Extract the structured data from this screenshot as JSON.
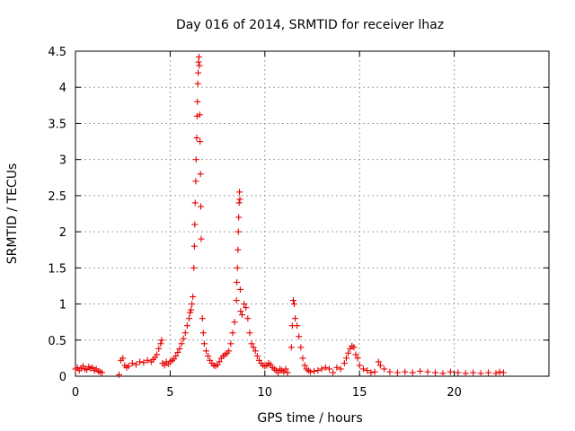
{
  "chart_data": {
    "type": "scatter",
    "title": "Day 016 of 2014, SRMTID for receiver lhaz",
    "xlabel": "GPS time / hours",
    "ylabel": "SRMTID / TECUs",
    "xlim": [
      0,
      25
    ],
    "ylim": [
      0,
      4.5
    ],
    "xticks": [
      "0",
      "5",
      "10",
      "15",
      "20"
    ],
    "yticks": [
      "0",
      "0.5",
      "1",
      "1.5",
      "2",
      "2.5",
      "3",
      "3.5",
      "4",
      "4.5"
    ],
    "xtick_values": [
      0,
      5,
      10,
      15,
      20
    ],
    "ytick_values": [
      0,
      0.5,
      1,
      1.5,
      2,
      2.5,
      3,
      3.5,
      4,
      4.5
    ],
    "grid": true,
    "marker": "plus",
    "series": [
      {
        "name": "SRMTID",
        "color": "#e60000",
        "points": [
          [
            0.0,
            0.1
          ],
          [
            0.1,
            0.12
          ],
          [
            0.2,
            0.08
          ],
          [
            0.3,
            0.11
          ],
          [
            0.4,
            0.14
          ],
          [
            0.5,
            0.1
          ],
          [
            0.6,
            0.09
          ],
          [
            0.7,
            0.13
          ],
          [
            0.8,
            0.11
          ],
          [
            0.9,
            0.12
          ],
          [
            1.0,
            0.08
          ],
          [
            1.1,
            0.1
          ],
          [
            1.2,
            0.07
          ],
          [
            1.3,
            0.06
          ],
          [
            1.4,
            0.05
          ],
          [
            2.3,
            0.02
          ],
          [
            2.4,
            0.22
          ],
          [
            2.5,
            0.25
          ],
          [
            2.6,
            0.15
          ],
          [
            2.7,
            0.12
          ],
          [
            2.8,
            0.14
          ],
          [
            3.0,
            0.18
          ],
          [
            3.2,
            0.16
          ],
          [
            3.4,
            0.2
          ],
          [
            3.6,
            0.19
          ],
          [
            3.8,
            0.22
          ],
          [
            4.0,
            0.2
          ],
          [
            4.1,
            0.23
          ],
          [
            4.2,
            0.26
          ],
          [
            4.3,
            0.3
          ],
          [
            4.4,
            0.38
          ],
          [
            4.5,
            0.45
          ],
          [
            4.55,
            0.5
          ],
          [
            4.6,
            0.18
          ],
          [
            4.7,
            0.15
          ],
          [
            4.8,
            0.2
          ],
          [
            4.9,
            0.17
          ],
          [
            5.0,
            0.2
          ],
          [
            5.1,
            0.22
          ],
          [
            5.2,
            0.24
          ],
          [
            5.3,
            0.28
          ],
          [
            5.4,
            0.33
          ],
          [
            5.5,
            0.38
          ],
          [
            5.6,
            0.45
          ],
          [
            5.7,
            0.52
          ],
          [
            5.8,
            0.6
          ],
          [
            5.9,
            0.7
          ],
          [
            6.0,
            0.8
          ],
          [
            6.05,
            0.88
          ],
          [
            6.1,
            0.92
          ],
          [
            6.15,
            1.0
          ],
          [
            6.2,
            1.1
          ],
          [
            6.25,
            1.5
          ],
          [
            6.28,
            1.8
          ],
          [
            6.3,
            2.1
          ],
          [
            6.32,
            2.4
          ],
          [
            6.35,
            2.7
          ],
          [
            6.37,
            3.0
          ],
          [
            6.4,
            3.3
          ],
          [
            6.42,
            3.6
          ],
          [
            6.44,
            3.8
          ],
          [
            6.46,
            4.05
          ],
          [
            6.48,
            4.2
          ],
          [
            6.5,
            4.35
          ],
          [
            6.52,
            4.42
          ],
          [
            6.54,
            4.3
          ],
          [
            6.56,
            3.62
          ],
          [
            6.58,
            3.25
          ],
          [
            6.6,
            2.8
          ],
          [
            6.62,
            2.35
          ],
          [
            6.64,
            1.9
          ],
          [
            6.7,
            0.8
          ],
          [
            6.75,
            0.6
          ],
          [
            6.8,
            0.45
          ],
          [
            6.9,
            0.35
          ],
          [
            7.0,
            0.28
          ],
          [
            7.1,
            0.22
          ],
          [
            7.2,
            0.18
          ],
          [
            7.3,
            0.15
          ],
          [
            7.4,
            0.14
          ],
          [
            7.5,
            0.16
          ],
          [
            7.6,
            0.2
          ],
          [
            7.7,
            0.25
          ],
          [
            7.8,
            0.28
          ],
          [
            7.9,
            0.3
          ],
          [
            8.0,
            0.32
          ],
          [
            8.1,
            0.35
          ],
          [
            8.2,
            0.45
          ],
          [
            8.3,
            0.6
          ],
          [
            8.4,
            0.75
          ],
          [
            8.5,
            1.05
          ],
          [
            8.52,
            1.3
          ],
          [
            8.55,
            1.5
          ],
          [
            8.58,
            1.75
          ],
          [
            8.6,
            2.0
          ],
          [
            8.62,
            2.2
          ],
          [
            8.64,
            2.4
          ],
          [
            8.66,
            2.55
          ],
          [
            8.68,
            2.45
          ],
          [
            8.7,
            1.2
          ],
          [
            8.72,
            0.9
          ],
          [
            8.8,
            0.85
          ],
          [
            8.9,
            1.0
          ],
          [
            9.0,
            0.95
          ],
          [
            9.1,
            0.8
          ],
          [
            9.2,
            0.6
          ],
          [
            9.3,
            0.45
          ],
          [
            9.4,
            0.4
          ],
          [
            9.5,
            0.35
          ],
          [
            9.6,
            0.28
          ],
          [
            9.7,
            0.22
          ],
          [
            9.8,
            0.18
          ],
          [
            9.9,
            0.15
          ],
          [
            10.0,
            0.14
          ],
          [
            10.1,
            0.15
          ],
          [
            10.2,
            0.18
          ],
          [
            10.3,
            0.16
          ],
          [
            10.4,
            0.12
          ],
          [
            10.5,
            0.1
          ],
          [
            10.6,
            0.08
          ],
          [
            10.7,
            0.05
          ],
          [
            10.8,
            0.1
          ],
          [
            10.9,
            0.08
          ],
          [
            11.0,
            0.06
          ],
          [
            11.1,
            0.1
          ],
          [
            11.2,
            0.05
          ],
          [
            11.4,
            0.4
          ],
          [
            11.45,
            0.7
          ],
          [
            11.5,
            1.05
          ],
          [
            11.55,
            1.0
          ],
          [
            11.6,
            0.8
          ],
          [
            11.7,
            0.7
          ],
          [
            11.8,
            0.55
          ],
          [
            11.9,
            0.4
          ],
          [
            12.0,
            0.25
          ],
          [
            12.1,
            0.15
          ],
          [
            12.2,
            0.1
          ],
          [
            12.3,
            0.08
          ],
          [
            12.4,
            0.06
          ],
          [
            12.6,
            0.07
          ],
          [
            12.8,
            0.08
          ],
          [
            13.0,
            0.1
          ],
          [
            13.2,
            0.12
          ],
          [
            13.4,
            0.1
          ],
          [
            13.6,
            0.05
          ],
          [
            13.8,
            0.12
          ],
          [
            14.0,
            0.1
          ],
          [
            14.2,
            0.18
          ],
          [
            14.3,
            0.25
          ],
          [
            14.4,
            0.32
          ],
          [
            14.5,
            0.38
          ],
          [
            14.6,
            0.42
          ],
          [
            14.7,
            0.4
          ],
          [
            14.8,
            0.3
          ],
          [
            14.9,
            0.25
          ],
          [
            15.0,
            0.15
          ],
          [
            15.2,
            0.1
          ],
          [
            15.4,
            0.08
          ],
          [
            15.6,
            0.05
          ],
          [
            15.8,
            0.06
          ],
          [
            16.0,
            0.2
          ],
          [
            16.1,
            0.15
          ],
          [
            16.3,
            0.1
          ],
          [
            16.6,
            0.06
          ],
          [
            17.0,
            0.05
          ],
          [
            17.4,
            0.06
          ],
          [
            17.8,
            0.05
          ],
          [
            18.2,
            0.07
          ],
          [
            18.6,
            0.06
          ],
          [
            19.0,
            0.05
          ],
          [
            19.4,
            0.04
          ],
          [
            19.8,
            0.06
          ],
          [
            20.2,
            0.05
          ],
          [
            20.6,
            0.04
          ],
          [
            21.0,
            0.05
          ],
          [
            21.4,
            0.04
          ],
          [
            21.8,
            0.05
          ],
          [
            22.2,
            0.04
          ],
          [
            22.4,
            0.06
          ],
          [
            22.6,
            0.05
          ]
        ]
      }
    ]
  }
}
